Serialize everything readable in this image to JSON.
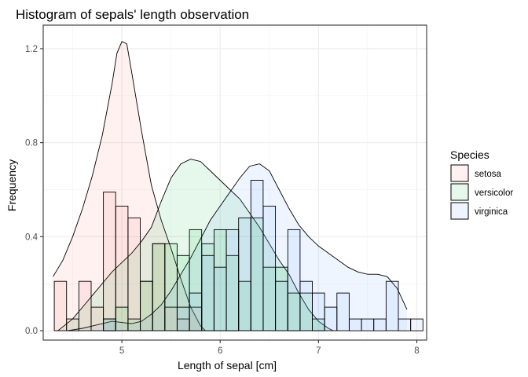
{
  "chart_data": {
    "type": "histogram+density",
    "title": "Histogram of sepals' length observation",
    "xlabel": "Length of sepal [cm]",
    "ylabel": "Frequency",
    "xlim": [
      4.2,
      8.1
    ],
    "ylim": [
      -0.04,
      1.3
    ],
    "x_ticks": [
      5,
      6,
      7,
      8
    ],
    "x_tick_labels": [
      "5",
      "6",
      "7",
      "8"
    ],
    "y_ticks": [
      0.0,
      0.4,
      0.8,
      1.2
    ],
    "y_tick_labels": [
      "0.0",
      "0.4",
      "0.8",
      "1.2"
    ],
    "grid": true,
    "bin_width": 0.125,
    "legend": {
      "title": "Species",
      "position": "right"
    },
    "series": [
      {
        "name": "setosa",
        "color": "#F8766D",
        "bins": [
          [
            4.375,
            0.21
          ],
          [
            4.5,
            0.05
          ],
          [
            4.625,
            0.21
          ],
          [
            4.75,
            0.1
          ],
          [
            4.875,
            0.59
          ],
          [
            5.0,
            0.53
          ],
          [
            5.125,
            0.48
          ],
          [
            5.25,
            0.21
          ],
          [
            5.375,
            0.37
          ],
          [
            5.5,
            0.1
          ],
          [
            5.625,
            0.05
          ],
          [
            5.75,
            0.1
          ]
        ],
        "density": [
          [
            4.3,
            0.23
          ],
          [
            4.4,
            0.3
          ],
          [
            4.5,
            0.4
          ],
          [
            4.6,
            0.52
          ],
          [
            4.7,
            0.66
          ],
          [
            4.8,
            0.83
          ],
          [
            4.9,
            1.05
          ],
          [
            4.95,
            1.18
          ],
          [
            5.0,
            1.23
          ],
          [
            5.05,
            1.22
          ],
          [
            5.1,
            1.1
          ],
          [
            5.2,
            0.85
          ],
          [
            5.3,
            0.62
          ],
          [
            5.4,
            0.47
          ],
          [
            5.5,
            0.35
          ],
          [
            5.6,
            0.22
          ],
          [
            5.7,
            0.1
          ],
          [
            5.8,
            0.02
          ],
          [
            5.85,
            0.0
          ]
        ]
      },
      {
        "name": "versicolor",
        "color": "#00BA38",
        "bins": [
          [
            4.875,
            0.05
          ],
          [
            5.0,
            0.1
          ],
          [
            5.125,
            0.05
          ],
          [
            5.25,
            0.21
          ],
          [
            5.375,
            0.37
          ],
          [
            5.5,
            0.37
          ],
          [
            5.625,
            0.32
          ],
          [
            5.75,
            0.43
          ],
          [
            5.875,
            0.37
          ],
          [
            6.0,
            0.43
          ],
          [
            6.125,
            0.32
          ],
          [
            6.25,
            0.21
          ],
          [
            6.375,
            0.48
          ],
          [
            6.5,
            0.27
          ],
          [
            6.625,
            0.27
          ],
          [
            6.75,
            0.16
          ],
          [
            6.875,
            0.16
          ],
          [
            7.0,
            0.05
          ]
        ],
        "density": [
          [
            4.35,
            0.0
          ],
          [
            4.5,
            0.05
          ],
          [
            4.7,
            0.15
          ],
          [
            4.9,
            0.25
          ],
          [
            5.1,
            0.33
          ],
          [
            5.2,
            0.38
          ],
          [
            5.3,
            0.44
          ],
          [
            5.4,
            0.55
          ],
          [
            5.5,
            0.65
          ],
          [
            5.6,
            0.71
          ],
          [
            5.7,
            0.73
          ],
          [
            5.8,
            0.72
          ],
          [
            5.9,
            0.68
          ],
          [
            6.0,
            0.64
          ],
          [
            6.1,
            0.6
          ],
          [
            6.2,
            0.56
          ],
          [
            6.3,
            0.5
          ],
          [
            6.4,
            0.44
          ],
          [
            6.5,
            0.37
          ],
          [
            6.6,
            0.3
          ],
          [
            6.7,
            0.24
          ],
          [
            6.8,
            0.16
          ],
          [
            6.9,
            0.09
          ],
          [
            7.0,
            0.04
          ],
          [
            7.1,
            0.01
          ],
          [
            7.15,
            0.0
          ]
        ]
      },
      {
        "name": "virginica",
        "color": "#619CFF",
        "bins": [
          [
            4.875,
            0.05
          ],
          [
            5.625,
            0.1
          ],
          [
            5.75,
            0.16
          ],
          [
            5.875,
            0.32
          ],
          [
            6.0,
            0.27
          ],
          [
            6.125,
            0.43
          ],
          [
            6.25,
            0.48
          ],
          [
            6.375,
            0.64
          ],
          [
            6.5,
            0.53
          ],
          [
            6.625,
            0.21
          ],
          [
            6.75,
            0.43
          ],
          [
            6.875,
            0.21
          ],
          [
            7.0,
            0.16
          ],
          [
            7.125,
            0.1
          ],
          [
            7.25,
            0.16
          ],
          [
            7.375,
            0.05
          ],
          [
            7.5,
            0.05
          ],
          [
            7.625,
            0.05
          ],
          [
            7.75,
            0.21
          ],
          [
            7.875,
            0.05
          ],
          [
            8.0,
            0.05
          ]
        ],
        "density": [
          [
            4.45,
            0.0
          ],
          [
            4.6,
            0.01
          ],
          [
            4.8,
            0.03
          ],
          [
            4.9,
            0.04
          ],
          [
            5.0,
            0.035
          ],
          [
            5.1,
            0.03
          ],
          [
            5.2,
            0.04
          ],
          [
            5.3,
            0.07
          ],
          [
            5.4,
            0.11
          ],
          [
            5.5,
            0.17
          ],
          [
            5.6,
            0.24
          ],
          [
            5.7,
            0.31
          ],
          [
            5.8,
            0.39
          ],
          [
            5.9,
            0.47
          ],
          [
            6.0,
            0.53
          ],
          [
            6.1,
            0.59
          ],
          [
            6.2,
            0.65
          ],
          [
            6.3,
            0.7
          ],
          [
            6.4,
            0.71
          ],
          [
            6.5,
            0.68
          ],
          [
            6.6,
            0.6
          ],
          [
            6.7,
            0.52
          ],
          [
            6.8,
            0.45
          ],
          [
            6.9,
            0.4
          ],
          [
            7.0,
            0.36
          ],
          [
            7.1,
            0.33
          ],
          [
            7.2,
            0.3
          ],
          [
            7.3,
            0.27
          ],
          [
            7.4,
            0.25
          ],
          [
            7.5,
            0.24
          ],
          [
            7.6,
            0.24
          ],
          [
            7.7,
            0.23
          ],
          [
            7.8,
            0.18
          ],
          [
            7.9,
            0.09
          ]
        ]
      }
    ]
  }
}
